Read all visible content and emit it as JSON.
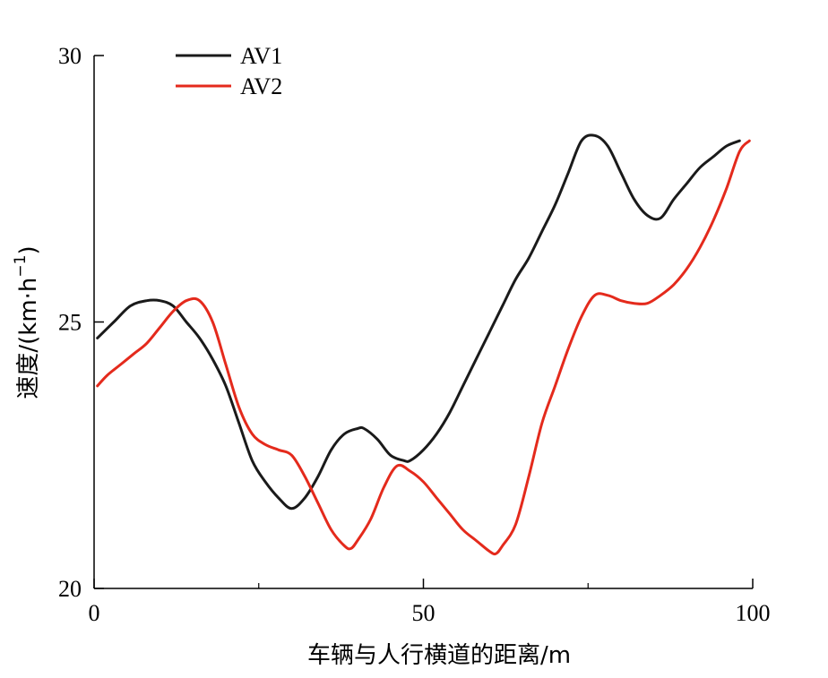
{
  "chart_data": {
    "type": "line",
    "title": "",
    "xlabel": "车辆与人行横道的距离/m",
    "ylabel_text": "速度/(km·h",
    "ylabel_sup": "−1",
    "ylabel_close": ")",
    "xlim": [
      0,
      100
    ],
    "ylim": [
      20,
      30
    ],
    "x_ticks": [
      0,
      50,
      100
    ],
    "x_ticks_minor": [
      25,
      75
    ],
    "y_ticks": [
      20,
      25,
      30
    ],
    "x_tick_labels": [
      "0",
      "50",
      "100"
    ],
    "y_tick_labels": [
      "20",
      "25",
      "30"
    ],
    "grid": false,
    "legend_position": "top-left",
    "series": [
      {
        "name": "AV1",
        "color": "#1a1a1a",
        "points": [
          [
            0.5,
            24.7
          ],
          [
            3,
            25.0
          ],
          [
            5.5,
            25.3
          ],
          [
            8,
            25.4
          ],
          [
            10,
            25.4
          ],
          [
            12,
            25.3
          ],
          [
            14,
            25.0
          ],
          [
            16,
            24.7
          ],
          [
            18,
            24.3
          ],
          [
            20,
            23.8
          ],
          [
            22,
            23.1
          ],
          [
            24,
            22.4
          ],
          [
            26,
            22.0
          ],
          [
            28,
            21.7
          ],
          [
            30,
            21.5
          ],
          [
            32,
            21.7
          ],
          [
            34,
            22.1
          ],
          [
            36,
            22.6
          ],
          [
            38,
            22.9
          ],
          [
            40,
            23.0
          ],
          [
            41,
            23.0
          ],
          [
            43,
            22.8
          ],
          [
            45,
            22.5
          ],
          [
            47,
            22.4
          ],
          [
            48,
            22.4
          ],
          [
            50,
            22.6
          ],
          [
            52,
            22.9
          ],
          [
            54,
            23.3
          ],
          [
            56,
            23.8
          ],
          [
            58,
            24.3
          ],
          [
            60,
            24.8
          ],
          [
            62,
            25.3
          ],
          [
            64,
            25.8
          ],
          [
            66,
            26.2
          ],
          [
            68,
            26.7
          ],
          [
            70,
            27.2
          ],
          [
            72,
            27.8
          ],
          [
            74,
            28.4
          ],
          [
            76,
            28.5
          ],
          [
            78,
            28.3
          ],
          [
            80,
            27.8
          ],
          [
            82,
            27.3
          ],
          [
            84,
            27.0
          ],
          [
            86,
            26.95
          ],
          [
            88,
            27.3
          ],
          [
            90,
            27.6
          ],
          [
            92,
            27.9
          ],
          [
            94,
            28.1
          ],
          [
            96,
            28.3
          ],
          [
            98,
            28.4
          ]
        ]
      },
      {
        "name": "AV2",
        "color": "#e42a1c",
        "points": [
          [
            0.5,
            23.8
          ],
          [
            2,
            24.0
          ],
          [
            4,
            24.2
          ],
          [
            6,
            24.4
          ],
          [
            8,
            24.6
          ],
          [
            10,
            24.9
          ],
          [
            12,
            25.2
          ],
          [
            14,
            25.4
          ],
          [
            16,
            25.4
          ],
          [
            18,
            25.0
          ],
          [
            20,
            24.2
          ],
          [
            22,
            23.4
          ],
          [
            24,
            22.9
          ],
          [
            26,
            22.7
          ],
          [
            28,
            22.6
          ],
          [
            30,
            22.5
          ],
          [
            32,
            22.1
          ],
          [
            34,
            21.6
          ],
          [
            36,
            21.1
          ],
          [
            38,
            20.8
          ],
          [
            39,
            20.75
          ],
          [
            40,
            20.9
          ],
          [
            42,
            21.3
          ],
          [
            44,
            21.9
          ],
          [
            46,
            22.3
          ],
          [
            48,
            22.2
          ],
          [
            50,
            22.0
          ],
          [
            52,
            21.7
          ],
          [
            54,
            21.4
          ],
          [
            56,
            21.1
          ],
          [
            58,
            20.9
          ],
          [
            60,
            20.7
          ],
          [
            61,
            20.65
          ],
          [
            62,
            20.8
          ],
          [
            64,
            21.2
          ],
          [
            66,
            22.1
          ],
          [
            68,
            23.1
          ],
          [
            70,
            23.8
          ],
          [
            72,
            24.5
          ],
          [
            74,
            25.1
          ],
          [
            76,
            25.5
          ],
          [
            78,
            25.5
          ],
          [
            80,
            25.4
          ],
          [
            82,
            25.35
          ],
          [
            84,
            25.35
          ],
          [
            86,
            25.5
          ],
          [
            88,
            25.7
          ],
          [
            90,
            26.0
          ],
          [
            92,
            26.4
          ],
          [
            94,
            26.9
          ],
          [
            96,
            27.5
          ],
          [
            98,
            28.2
          ],
          [
            99.5,
            28.4
          ]
        ]
      }
    ]
  }
}
